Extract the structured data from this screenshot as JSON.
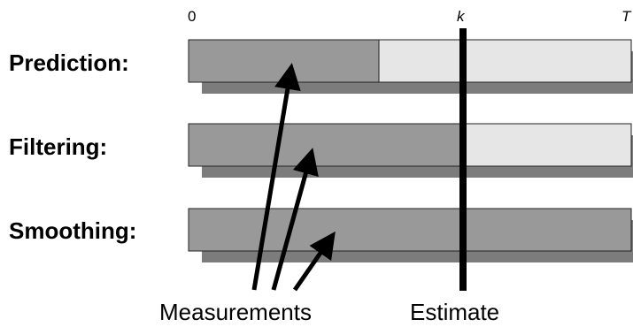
{
  "axis": {
    "start_label": "0",
    "current_label": "k",
    "end_label": "T"
  },
  "rows": [
    {
      "label": "Prediction:",
      "measured_until": "0.43"
    },
    {
      "label": "Filtering:",
      "measured_until": "k"
    },
    {
      "label": "Smoothing:",
      "measured_until": "T"
    }
  ],
  "labels": {
    "measurements": "Measurements",
    "estimate": "Estimate"
  },
  "colors": {
    "measured": "#999999",
    "unmeasured": "#e6e6e6",
    "shadow": "#7c7c7c",
    "estimate_line": "#000000",
    "arrow": "#000000"
  }
}
